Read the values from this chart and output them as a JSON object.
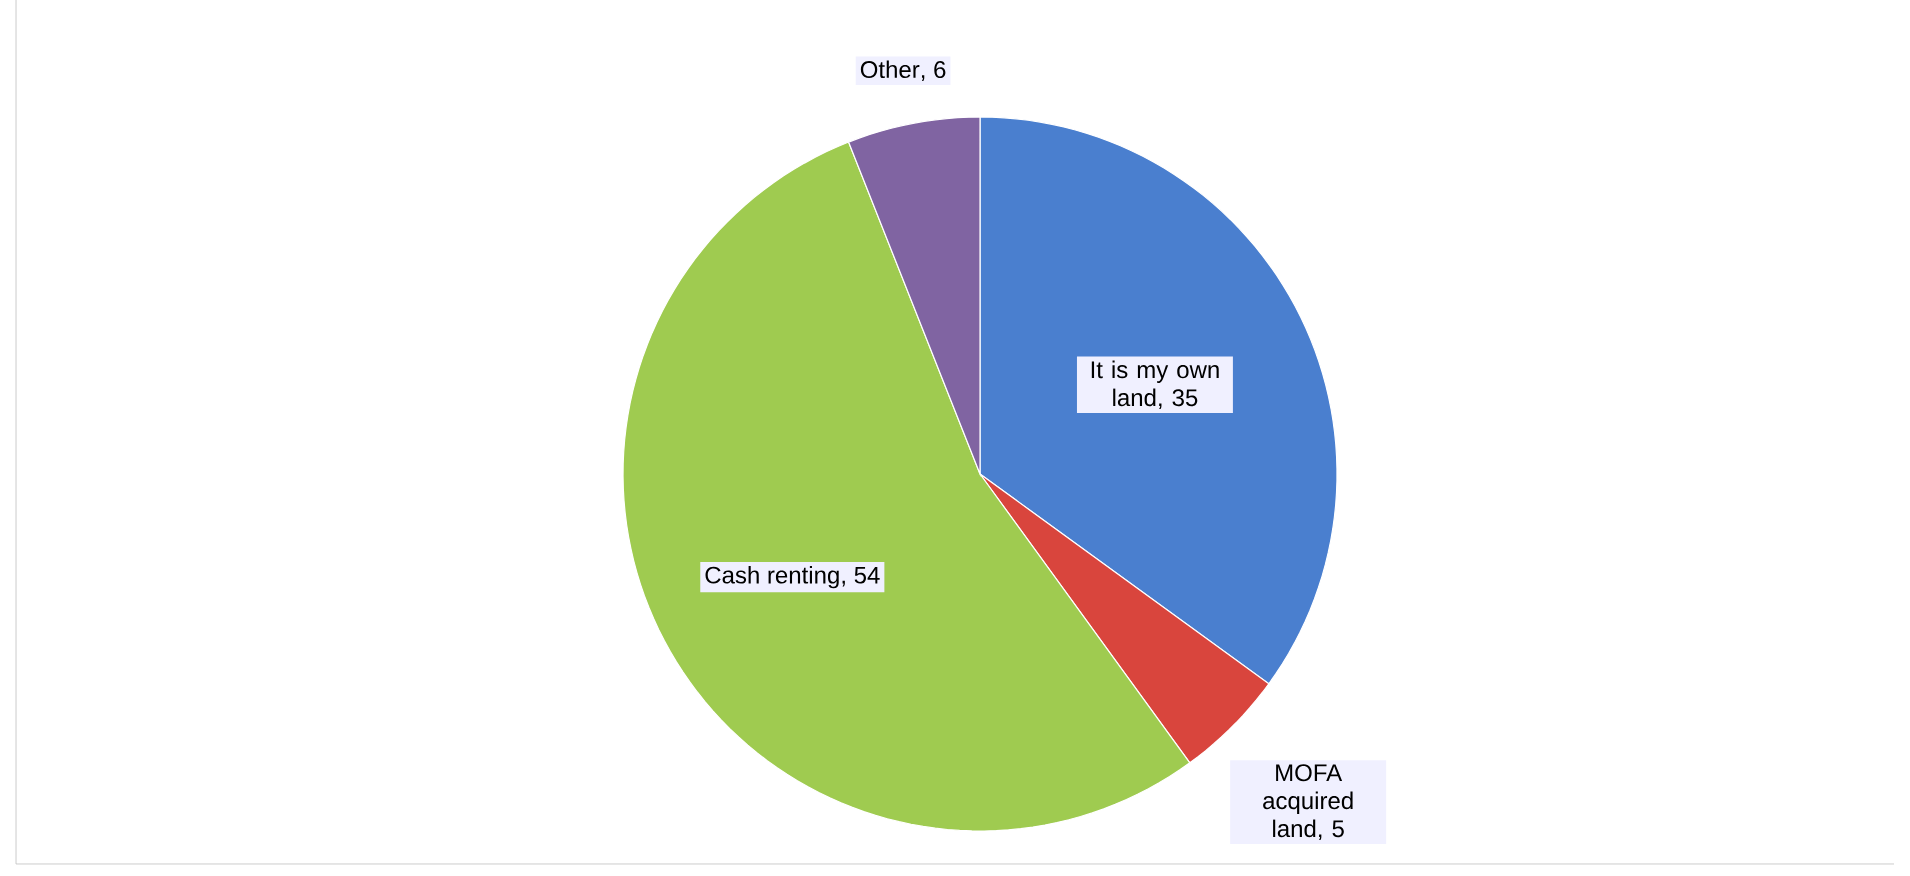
{
  "chart_data": {
    "type": "pie",
    "categories": [
      "It is my own land",
      "MOFA acquired land",
      "Cash renting",
      "Other"
    ],
    "values": [
      35,
      5,
      54,
      6
    ],
    "colors": [
      "#4a7fcf",
      "#d9453d",
      "#9fcb50",
      "#8064a2"
    ],
    "value_labels": [
      ", 35",
      ", 5",
      ", 54",
      ", 6"
    ]
  }
}
